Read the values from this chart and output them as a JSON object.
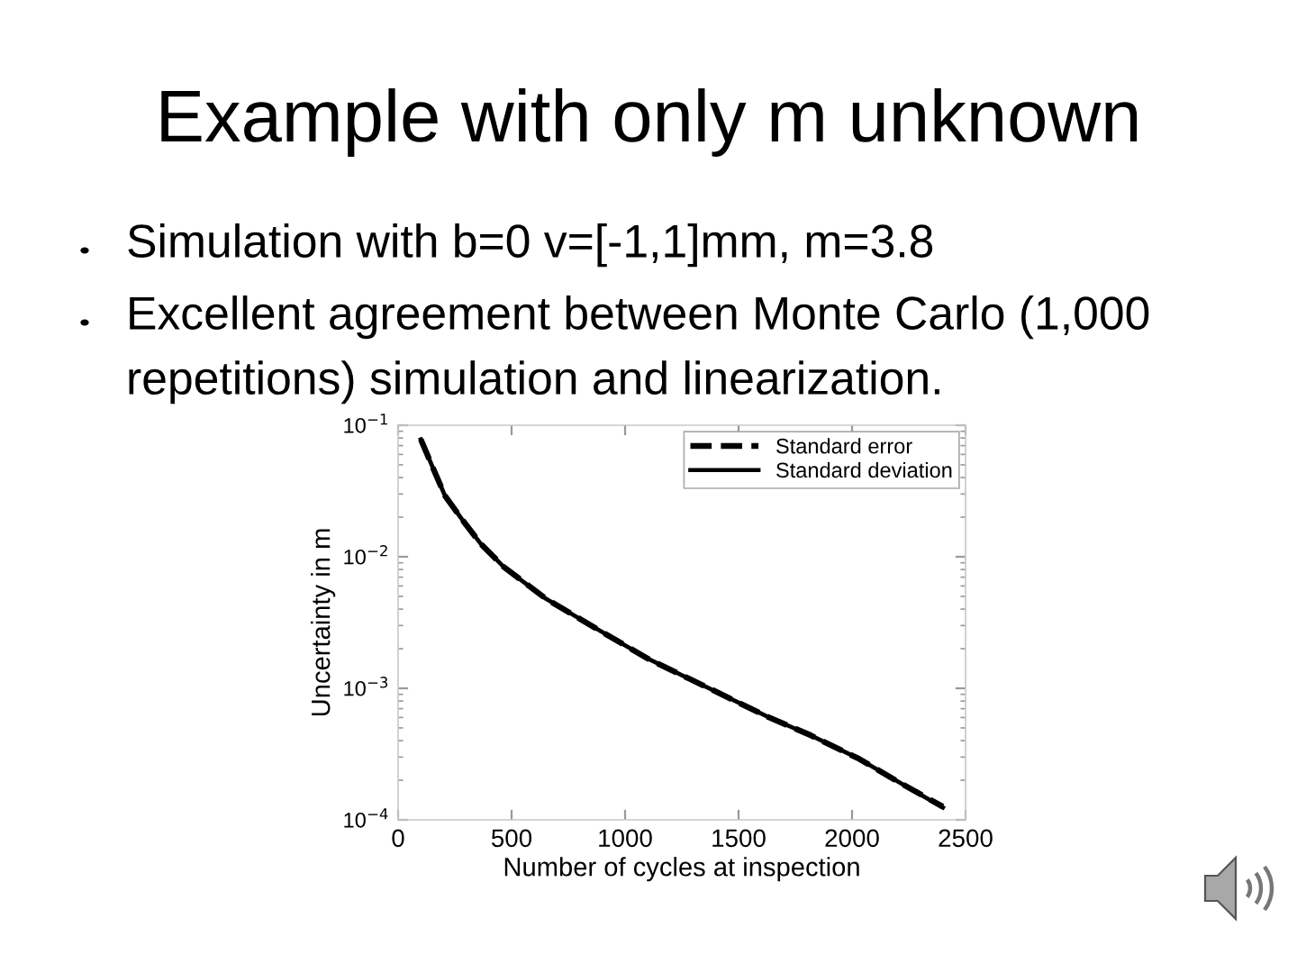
{
  "chart_data": {
    "type": "line",
    "title": "Example with only m unknown",
    "annotations": [
      "Simulation with b=0 v=[-1,1]mm, m=3.8",
      "Excellent agreement between Monte Carlo (1,000\nrepetitions) simulation and linearization."
    ],
    "xlabel": "Number of cycles at inspection",
    "ylabel": "Uncertainty in m",
    "log": "y",
    "xlim": [
      0,
      2500
    ],
    "xticks": [
      0,
      500,
      1000,
      1500,
      2000,
      2500
    ],
    "ylim": [
      0.0001,
      0.1
    ],
    "yticks": [
      {
        "value": 0.0001,
        "label": "10$^{−4}$"
      },
      {
        "value": 0.001,
        "label": "10$^{−3}$"
      },
      {
        "value": 0.01,
        "label": "10$^{−2}$"
      },
      {
        "value": 0.1,
        "label": "10$^{−1}$"
      }
    ],
    "legend": "top right",
    "grid": false,
    "x": [
      100,
      150,
      206,
      280,
      365,
      468,
      651,
      865,
      1103,
      1365,
      1635,
      1817,
      2032,
      2214,
      2400
    ],
    "series": [
      {
        "name": "Standard error",
        "color": "#000000",
        "line_style": "dashed",
        "values": [
          0.078,
          0.049,
          0.0292,
          0.0194,
          0.0125,
          0.0083,
          0.0048,
          0.0029,
          0.00167,
          0.00101,
          0.0006,
          0.00044,
          0.00029,
          0.00019,
          0.000126
        ]
      },
      {
        "name": "Standard deviation",
        "color": "#000000",
        "line_style": "solid",
        "values": [
          0.078,
          0.049,
          0.0292,
          0.0194,
          0.0125,
          0.0083,
          0.0048,
          0.0029,
          0.00167,
          0.00101,
          0.0006,
          0.00044,
          0.00029,
          0.00019,
          0.000124
        ]
      }
    ]
  }
}
